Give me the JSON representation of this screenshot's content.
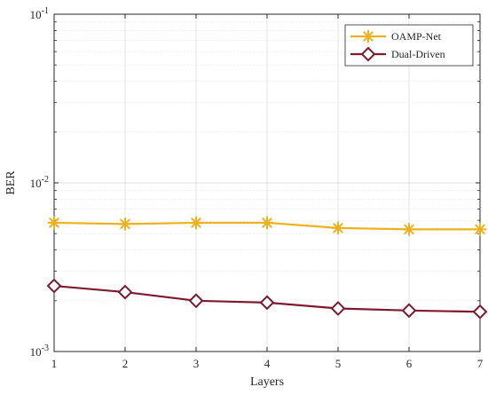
{
  "chart_data": {
    "type": "line",
    "title": "",
    "xlabel": "Layers",
    "ylabel": "BER",
    "x": [
      1,
      2,
      3,
      4,
      5,
      6,
      7
    ],
    "x_ticks": [
      "1",
      "2",
      "3",
      "4",
      "5",
      "6",
      "7"
    ],
    "xlim": [
      1,
      7
    ],
    "y_scale": "log",
    "ylim": [
      0.001,
      0.1
    ],
    "y_ticks": [
      {
        "value": 0.1,
        "base": "10",
        "exp": "-1"
      },
      {
        "value": 0.01,
        "base": "10",
        "exp": "-2"
      },
      {
        "value": 0.001,
        "base": "10",
        "exp": "-3"
      }
    ],
    "grid": true,
    "minor_grid": true,
    "legend_position": "top-right",
    "series": [
      {
        "name": "OAMP-Net",
        "color": "#EDB120",
        "marker": "asterisk",
        "values": [
          0.0058,
          0.0057,
          0.0058,
          0.0058,
          0.0054,
          0.0053,
          0.0053
        ]
      },
      {
        "name": "Dual-Driven",
        "color": "#7E1A2F",
        "marker": "diamond",
        "values": [
          0.00245,
          0.00225,
          0.002,
          0.00195,
          0.0018,
          0.00175,
          0.00172
        ]
      }
    ]
  }
}
